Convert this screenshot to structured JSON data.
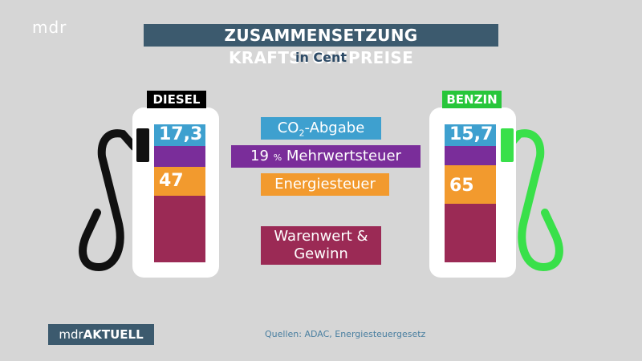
{
  "header": {
    "logo_text": "mdr",
    "title": "ZUSAMMENSETZUNG KRAFTSTOFFPREISE",
    "subtitle": "in Cent"
  },
  "legend": {
    "co2_prefix": "CO",
    "co2_sub": "2",
    "co2_suffix": "-Abgabe",
    "mwst_num": "19",
    "mwst_pct": "%",
    "mwst_text": "Mehrwertsteuer",
    "energie": "Energiesteuer",
    "warenwert_line1": "Warenwert &",
    "warenwert_line2": "Gewinn"
  },
  "colors": {
    "co2": "#3ea0cf",
    "mwst": "#7a2d9a",
    "energie": "#f29a2e",
    "warenwert": "#9b2a55",
    "diesel_hose": "#111111",
    "benzin_hose": "#39e04a",
    "title_bg": "#3c5a6e"
  },
  "chart_data": {
    "type": "bar",
    "title": "ZUSAMMENSETZUNG KRAFTSTOFFPREISE",
    "subtitle": "in Cent",
    "categories": [
      "DIESEL",
      "BENZIN"
    ],
    "series": [
      {
        "name": "CO2-Abgabe",
        "values": [
          17.3,
          15.7
        ]
      },
      {
        "name": "19 % Mehrwertsteuer",
        "values": [
          null,
          null
        ]
      },
      {
        "name": "Energiesteuer",
        "values": [
          47,
          65
        ]
      },
      {
        "name": "Warenwert & Gewinn",
        "values": [
          null,
          null
        ]
      }
    ],
    "value_labels": {
      "DIESEL": {
        "co2": "17,3",
        "energie": "47"
      },
      "BENZIN": {
        "co2": "15,7",
        "energie": "65"
      }
    }
  },
  "footer": {
    "badge_prefix": "mdr",
    "badge_bold": "AKTUELL",
    "sources": "Quellen: ADAC, Energiesteuergesetz"
  }
}
